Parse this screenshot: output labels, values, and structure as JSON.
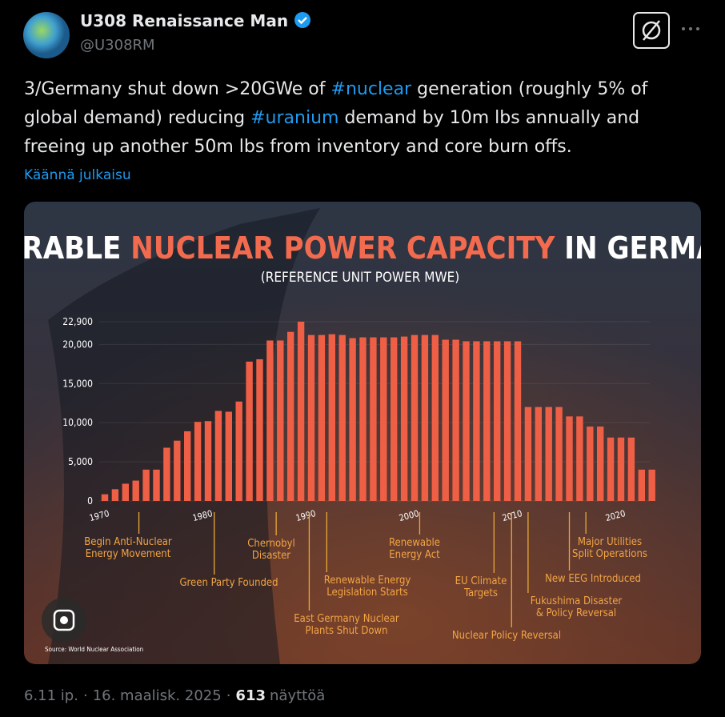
{
  "tweet": {
    "name": "U308 Renaissance Man",
    "handle": "@U308RM",
    "text": [
      "3/Germany shut down >20GWe of ",
      "#nuclear",
      " generation (roughly 5% of global demand)  reducing ",
      "#uranium",
      " demand by 10m lbs annually and freeing up another 50m lbs from inventory and core burn offs."
    ],
    "translate": "Käännä julkaisu",
    "meta": [
      "6.11 ip.",
      "·",
      "16. maalisk. 2025",
      "·",
      "613",
      "näyttöä"
    ]
  },
  "chart_data": {
    "type": "bar",
    "title": [
      "OPERABLE ",
      "NUCLEAR POWER CAPACITY",
      " IN GERMANY"
    ],
    "subtitle": "(REFERENCE UNIT POWER MWE)",
    "source": "Source: World Nuclear Association",
    "color": "#ee5f46",
    "categories": [
      "1970",
      null,
      null,
      null,
      null,
      null,
      null,
      null,
      null,
      null,
      "1980",
      null,
      null,
      null,
      null,
      null,
      null,
      null,
      null,
      null,
      "1990",
      null,
      null,
      null,
      null,
      null,
      null,
      null,
      null,
      null,
      "2000",
      null,
      null,
      null,
      null,
      null,
      null,
      null,
      null,
      null,
      "2010",
      null,
      null,
      null,
      null,
      null,
      null,
      null,
      null,
      null,
      "2020",
      null,
      null,
      null
    ],
    "values": [
      850,
      1500,
      2200,
      2600,
      4000,
      4000,
      6800,
      7700,
      8900,
      10100,
      10200,
      11500,
      11400,
      12700,
      17800,
      18100,
      20500,
      20500,
      21600,
      22900,
      21200,
      21200,
      21300,
      21200,
      20800,
      20900,
      20900,
      20900,
      20900,
      21000,
      21200,
      21200,
      21200,
      20600,
      20600,
      20400,
      20400,
      20400,
      20400,
      20400,
      20400,
      12000,
      12000,
      12000,
      12000,
      10800,
      10800,
      9500,
      9500,
      8100,
      8100,
      8100,
      4000,
      4000
    ],
    "ylim": [
      0,
      22900
    ],
    "yticks": [
      0,
      {
        "value": 5000,
        "label": "5,000"
      },
      {
        "value": 10000,
        "label": "10,000"
      },
      {
        "value": 15000,
        "label": "15,000"
      },
      {
        "value": 20000,
        "label": "20,000"
      },
      {
        "value": 22900,
        "label": "22,900"
      }
    ],
    "annotations": [
      {
        "x": 3.3,
        "lines": [
          "Begin Anti-Nuclear",
          "Energy Movement"
        ]
      },
      {
        "x": 10.6,
        "lines": [
          "Green Party Founded"
        ]
      },
      {
        "x": 16.6,
        "lines": [
          "Chernobyl",
          "Disaster"
        ]
      },
      {
        "x": 19.8,
        "lines": [
          "East Germany Nuclear",
          "Plants Shut Down"
        ]
      },
      {
        "x": 21.5,
        "lines": [
          "Renewable Energy",
          "Legislation Starts"
        ]
      },
      {
        "x": 30.5,
        "lines": [
          "Renewable",
          "Energy Act"
        ]
      },
      {
        "x": 37.7,
        "lines": [
          "EU Climate",
          "Targets"
        ]
      },
      {
        "x": 39.4,
        "lines": [
          "Nuclear Policy Reversal"
        ]
      },
      {
        "x": 41,
        "lines": [
          "Fukushima Disaster",
          "& Policy Reversal"
        ]
      },
      {
        "x": 45,
        "lines": [
          "New EEG Introduced"
        ]
      },
      {
        "x": 46.6,
        "lines": [
          "Major Utilities",
          "Split Operations"
        ]
      }
    ]
  }
}
